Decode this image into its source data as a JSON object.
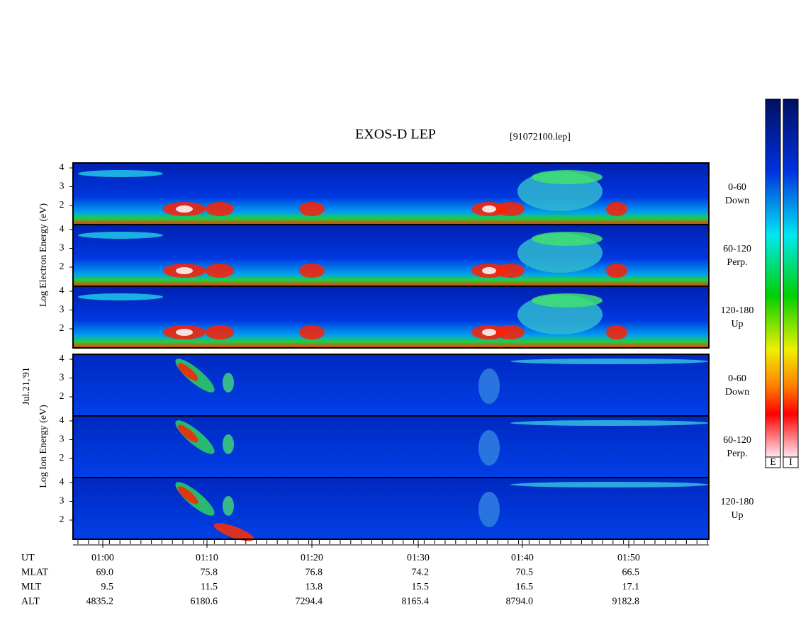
{
  "title": "EXOS-D LEP",
  "file": "[91072100.lep]",
  "date": "Jul.21,'91",
  "electron": {
    "ylabel": "Log Electron Energy (eV)",
    "panels": [
      {
        "range": "0-60",
        "dir": "Down",
        "ticks": [
          "4",
          "3",
          "2"
        ]
      },
      {
        "range": "60-120",
        "dir": "Perp.",
        "ticks": [
          "4",
          "3",
          "2"
        ]
      },
      {
        "range": "120-180",
        "dir": "Up",
        "ticks": [
          "4",
          "3",
          "2"
        ]
      }
    ]
  },
  "ion": {
    "ylabel": "Log Ion Energy (eV)",
    "panels": [
      {
        "range": "0-60",
        "dir": "Down",
        "ticks": [
          "4",
          "3",
          "2"
        ]
      },
      {
        "range": "60-120",
        "dir": "Perp.",
        "ticks": [
          "4",
          "3",
          "2"
        ]
      },
      {
        "range": "120-180",
        "dir": "Up",
        "ticks": [
          "4",
          "3",
          "2"
        ]
      }
    ]
  },
  "colorbar": {
    "labels": [
      "E",
      "I"
    ]
  },
  "axis": {
    "rows": [
      {
        "name": "UT",
        "values": [
          "01:00",
          "01:10",
          "01:20",
          "01:30",
          "01:40",
          "01:50"
        ]
      },
      {
        "name": "MLAT",
        "values": [
          "69.0",
          "75.8",
          "76.8",
          "74.2",
          "70.5",
          "66.5"
        ]
      },
      {
        "name": "MLT",
        "values": [
          "9.5",
          "11.5",
          "13.8",
          "15.5",
          "16.5",
          "17.1"
        ]
      },
      {
        "name": "ALT",
        "values": [
          "4835.2",
          "6180.6",
          "7294.4",
          "8165.4",
          "8794.0",
          "9182.8"
        ]
      }
    ]
  }
}
